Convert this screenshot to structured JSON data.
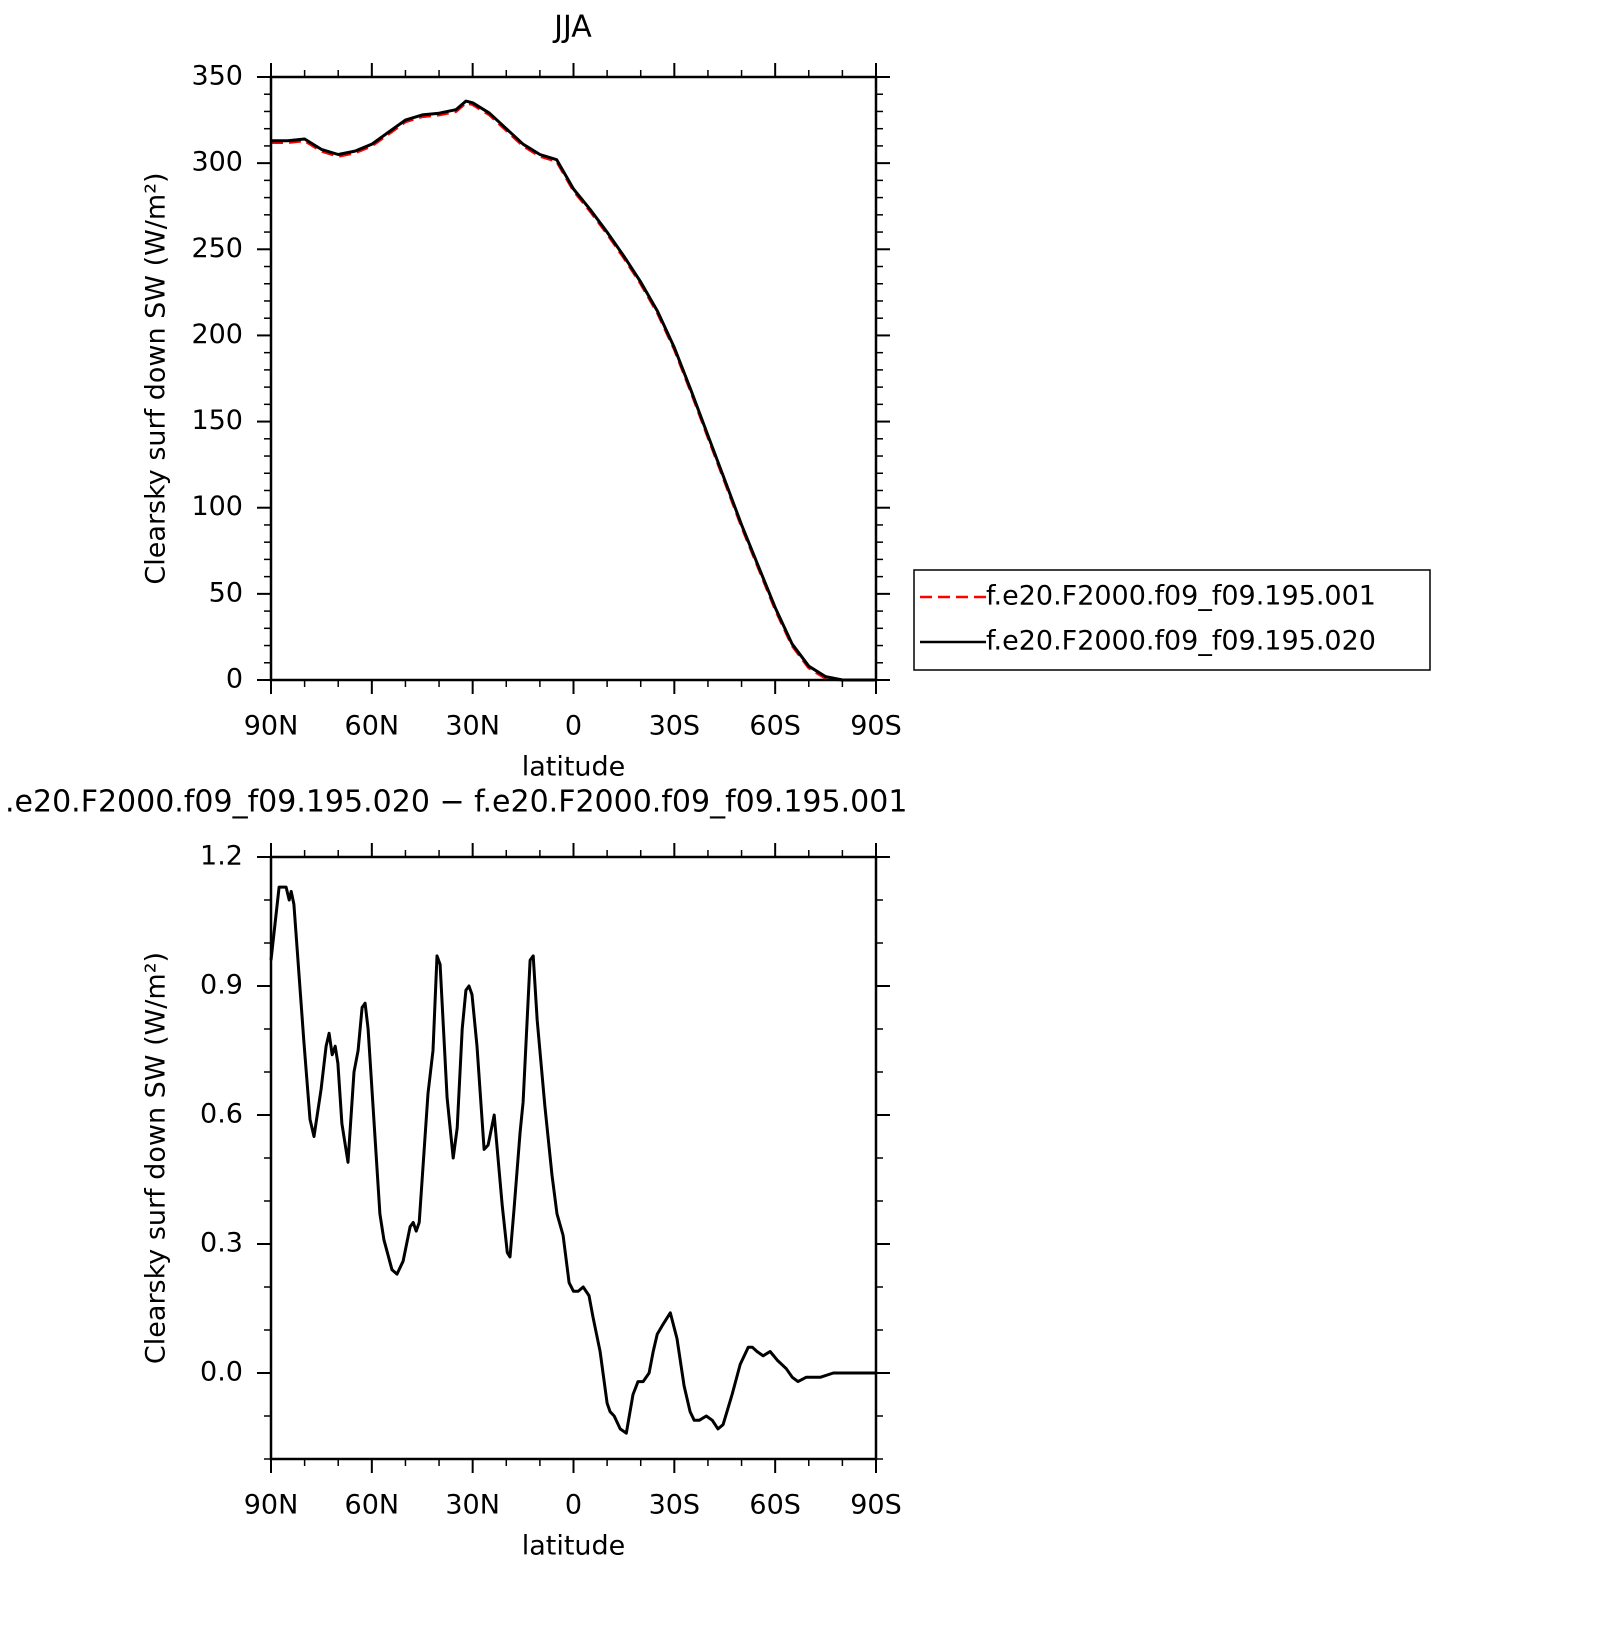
{
  "chart_data": [
    {
      "type": "line",
      "title": "JJA",
      "xlabel": "latitude",
      "ylabel": "Clearsky surf down SW (W/m²)",
      "x": [
        90,
        85,
        80,
        75,
        70,
        65,
        60,
        55,
        50,
        45,
        40,
        35,
        32,
        30,
        25,
        20,
        15,
        10,
        5,
        0,
        -5,
        -10,
        -15,
        -20,
        -25,
        -30,
        -35,
        -40,
        -45,
        -50,
        -55,
        -60,
        -65,
        -70,
        -75,
        -80,
        -85,
        -90
      ],
      "series": [
        {
          "name": "f.e20.F2000.f09_f09.195.001",
          "color": "#ff0000",
          "style": "dashed",
          "values": [
            312,
            312,
            313,
            307,
            304,
            306,
            310,
            317,
            324,
            327,
            328,
            330,
            335,
            334,
            328,
            319,
            310,
            304,
            301,
            284,
            272,
            259,
            245,
            230,
            213,
            192,
            167,
            141,
            115,
            89,
            65,
            41,
            20,
            7,
            1,
            0,
            0,
            0
          ]
        },
        {
          "name": "f.e20.F2000.f09_f09.195.020",
          "color": "#000000",
          "style": "solid",
          "values": [
            313,
            313,
            314,
            308,
            305,
            307,
            311,
            318,
            325,
            328,
            329,
            331,
            336,
            335,
            329,
            320,
            311,
            305,
            302,
            285,
            273,
            260,
            246,
            231,
            214,
            193,
            168,
            142,
            116,
            90,
            66,
            42,
            21,
            8,
            2,
            0,
            0,
            0
          ]
        }
      ],
      "xlim": [
        90,
        -90
      ],
      "ylim": [
        0,
        350
      ],
      "xticks": [
        {
          "value": 90,
          "label": "90N"
        },
        {
          "value": 60,
          "label": "60N"
        },
        {
          "value": 30,
          "label": "30N"
        },
        0,
        {
          "value": -30,
          "label": "30S"
        },
        {
          "value": -60,
          "label": "60S"
        },
        {
          "value": -90,
          "label": "90S"
        }
      ],
      "yticks": [
        0,
        50,
        100,
        150,
        200,
        250,
        300,
        350
      ],
      "xminorticks": [
        80,
        70,
        50,
        40,
        20,
        10,
        -10,
        -20,
        -40,
        -50,
        -70,
        -80
      ],
      "yminorticks": [
        10,
        20,
        30,
        40,
        60,
        70,
        80,
        90,
        110,
        120,
        130,
        140,
        160,
        170,
        180,
        190,
        210,
        220,
        230,
        240,
        260,
        270,
        280,
        290,
        310,
        320,
        330,
        340
      ],
      "legend": "right"
    },
    {
      "type": "line",
      "title": ".e20.F2000.f09_f09.195.020 − f.e20.F2000.f09_f09.195.001",
      "xlabel": "latitude",
      "ylabel": "Clearsky surf down SW (W/m²)",
      "x": [
        90,
        87.6,
        85.5,
        84.6,
        84,
        83.2,
        80.2,
        78.4,
        77.2,
        75.1,
        73.6,
        72.7,
        71.8,
        70.9,
        70.1,
        68.9,
        67.1,
        65.3,
        64.1,
        62.9,
        62,
        61.1,
        57.6,
        56.4,
        54,
        52.5,
        50.7,
        48.6,
        47.7,
        46.8,
        45.9,
        43.3,
        41.8,
        40.6,
        39.7,
        37.6,
        35.8,
        34.6,
        33.1,
        32,
        31.1,
        30.2,
        28.7,
        26.6,
        25.4,
        23.6,
        21.2,
        19.7,
        18.9,
        17.7,
        15.9,
        15,
        12.9,
        12,
        10.8,
        8.5,
        6.4,
        4.9,
        3.1,
        1.3,
        0,
        -1.4,
        -2.9,
        -4.6,
        -5.8,
        -7.9,
        -10,
        -10.9,
        -12.1,
        -13.9,
        -15.7,
        -17.7,
        -19.2,
        -20.7,
        -22.5,
        -23.7,
        -24.9,
        -26.4,
        -28.8,
        -30.8,
        -32.9,
        -34.7,
        -35.9,
        -37.4,
        -39.5,
        -41.3,
        -43,
        -44.5,
        -47.2,
        -49.6,
        -52,
        -53.2,
        -54.6,
        -56.4,
        -58.5,
        -60.6,
        -63.3,
        -65.1,
        -66.8,
        -69.2,
        -73.4,
        -77.3,
        -90
      ],
      "series": [
        {
          "color": "#000000",
          "style": "solid",
          "values": [
            0.96,
            1.13,
            1.13,
            1.1,
            1.12,
            1.09,
            0.77,
            0.59,
            0.55,
            0.66,
            0.76,
            0.79,
            0.74,
            0.76,
            0.72,
            0.58,
            0.49,
            0.7,
            0.75,
            0.85,
            0.86,
            0.8,
            0.37,
            0.31,
            0.24,
            0.23,
            0.26,
            0.34,
            0.35,
            0.33,
            0.35,
            0.65,
            0.75,
            0.97,
            0.95,
            0.64,
            0.5,
            0.57,
            0.8,
            0.89,
            0.9,
            0.88,
            0.76,
            0.52,
            0.53,
            0.6,
            0.39,
            0.28,
            0.27,
            0.38,
            0.56,
            0.63,
            0.96,
            0.97,
            0.82,
            0.62,
            0.46,
            0.37,
            0.32,
            0.21,
            0.19,
            0.19,
            0.2,
            0.18,
            0.13,
            0.05,
            -0.07,
            -0.09,
            -0.1,
            -0.13,
            -0.14,
            -0.05,
            -0.02,
            -0.02,
            0,
            0.05,
            0.09,
            0.11,
            0.14,
            0.08,
            -0.03,
            -0.09,
            -0.11,
            -0.11,
            -0.1,
            -0.11,
            -0.13,
            -0.12,
            -0.05,
            0.02,
            0.06,
            0.06,
            0.05,
            0.04,
            0.05,
            0.03,
            0.01,
            -0.01,
            -0.02,
            -0.01,
            -0.01,
            0,
            0
          ]
        }
      ],
      "xlim": [
        90,
        -90
      ],
      "ylim": [
        -0.2,
        1.2
      ],
      "xticks": [
        {
          "value": 90,
          "label": "90N"
        },
        {
          "value": 60,
          "label": "60N"
        },
        {
          "value": 30,
          "label": "30N"
        },
        0,
        {
          "value": -30,
          "label": "30S"
        },
        {
          "value": -60,
          "label": "60S"
        },
        {
          "value": -90,
          "label": "90S"
        }
      ],
      "yticks": [
        {
          "value": 0,
          "label": "0.0"
        },
        0.3,
        0.6,
        0.9,
        1.2
      ],
      "xminorticks": [
        80,
        70,
        50,
        40,
        20,
        10,
        -10,
        -20,
        -40,
        -50,
        -70,
        -80
      ],
      "yminorticks": [
        -0.1,
        -0.2,
        0.1,
        0.2,
        0.4,
        0.5,
        0.7,
        0.8,
        1.0,
        1.1
      ]
    }
  ]
}
